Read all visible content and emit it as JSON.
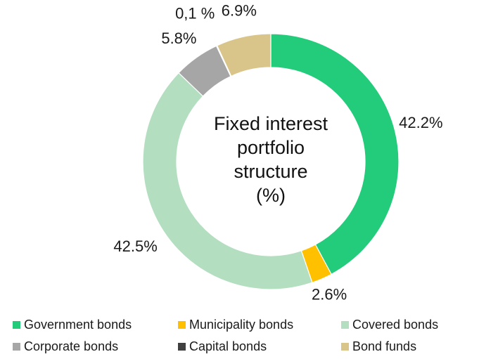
{
  "chart_data": {
    "type": "pie",
    "variant": "donut",
    "title": "Fixed interest portfolio structure (%)",
    "title_lines": [
      "Fixed interest",
      "portfolio",
      "structure",
      "(%)"
    ],
    "categories": [
      "Government bonds",
      "Municipality bonds",
      "Covered bonds",
      "Corporate bonds",
      "Capital bonds",
      "Bond funds"
    ],
    "values": [
      42.2,
      2.6,
      42.5,
      5.8,
      0.1,
      6.9
    ],
    "data_labels": [
      "42.2%",
      "2.6%",
      "42.5%",
      "5.8%",
      "0,1 %",
      "6.9%"
    ],
    "colors": [
      "#22cc7a",
      "#ffc000",
      "#b3dec0",
      "#a6a6a6",
      "#404040",
      "#d9c58a"
    ],
    "legend_position": "bottom"
  }
}
